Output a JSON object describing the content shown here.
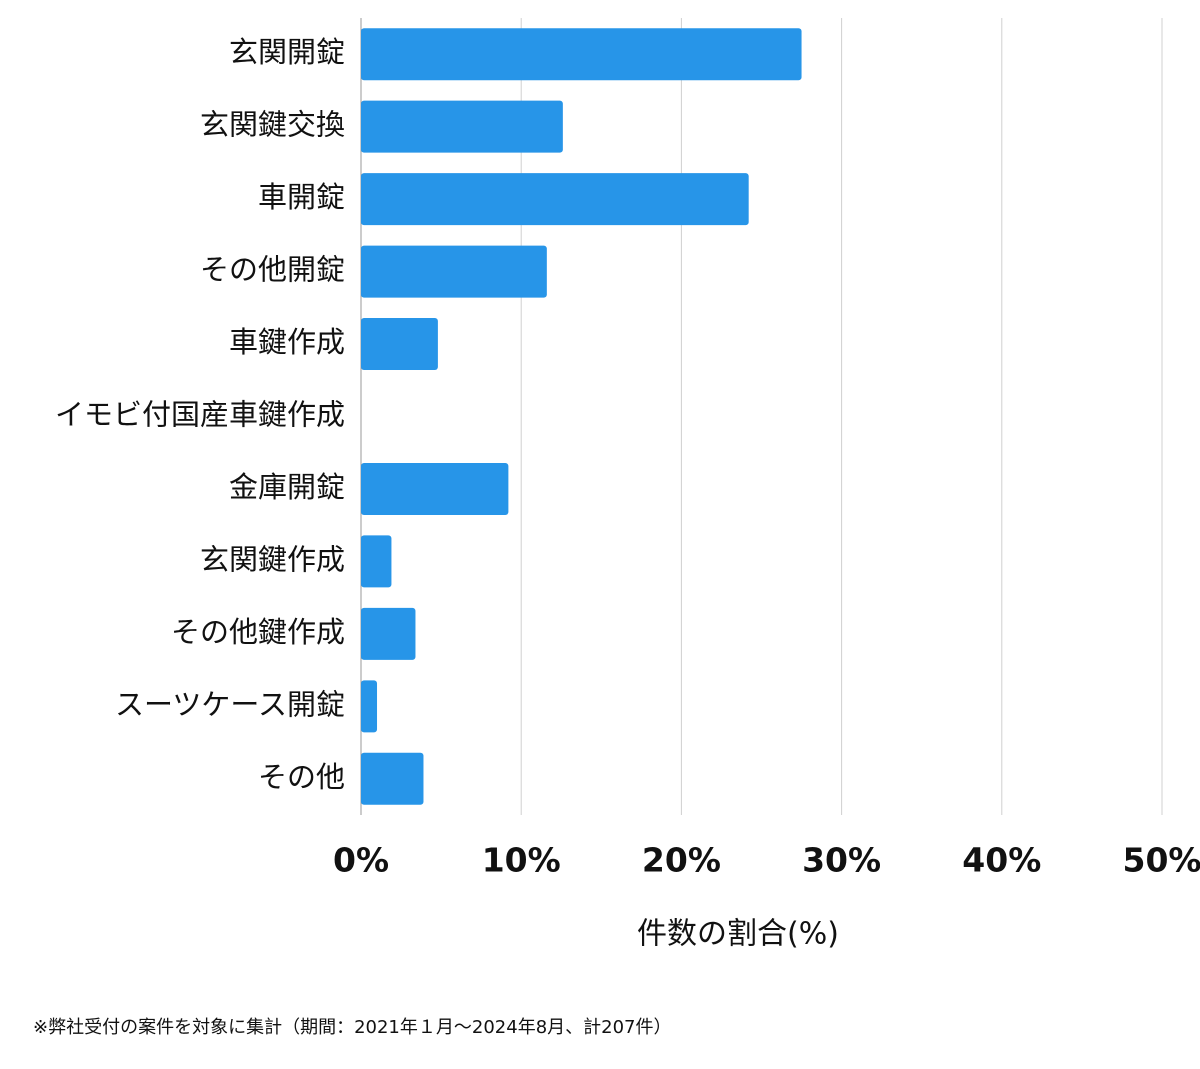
{
  "chart_data": {
    "type": "bar",
    "orientation": "horizontal",
    "categories": [
      "玄関開錠",
      "玄関鍵交換",
      "車開錠",
      "その他開錠",
      "車鍵作成",
      "イモビ付国産車鍵作成",
      "金庫開錠",
      "玄関鍵作成",
      "その他鍵作成",
      "スーツケース開錠",
      "その他"
    ],
    "values": [
      27.5,
      12.6,
      24.2,
      11.6,
      4.8,
      0,
      9.2,
      1.9,
      3.4,
      1.0,
      3.9
    ],
    "color": "#2795e8",
    "x_label": "件数の割合(%)",
    "xlim": [
      0,
      50
    ],
    "xticks": [
      {
        "value": 0,
        "label": "0%"
      },
      {
        "value": 10,
        "label": "10%"
      },
      {
        "value": 20,
        "label": "20%"
      },
      {
        "value": 30,
        "label": "30%"
      },
      {
        "value": 40,
        "label": "40%"
      },
      {
        "value": 50,
        "label": "50%"
      }
    ],
    "grid": true,
    "footnote": "※弊社受付の案件を対象に集計（期間：2021年１月〜2024年8月、計207件）"
  }
}
